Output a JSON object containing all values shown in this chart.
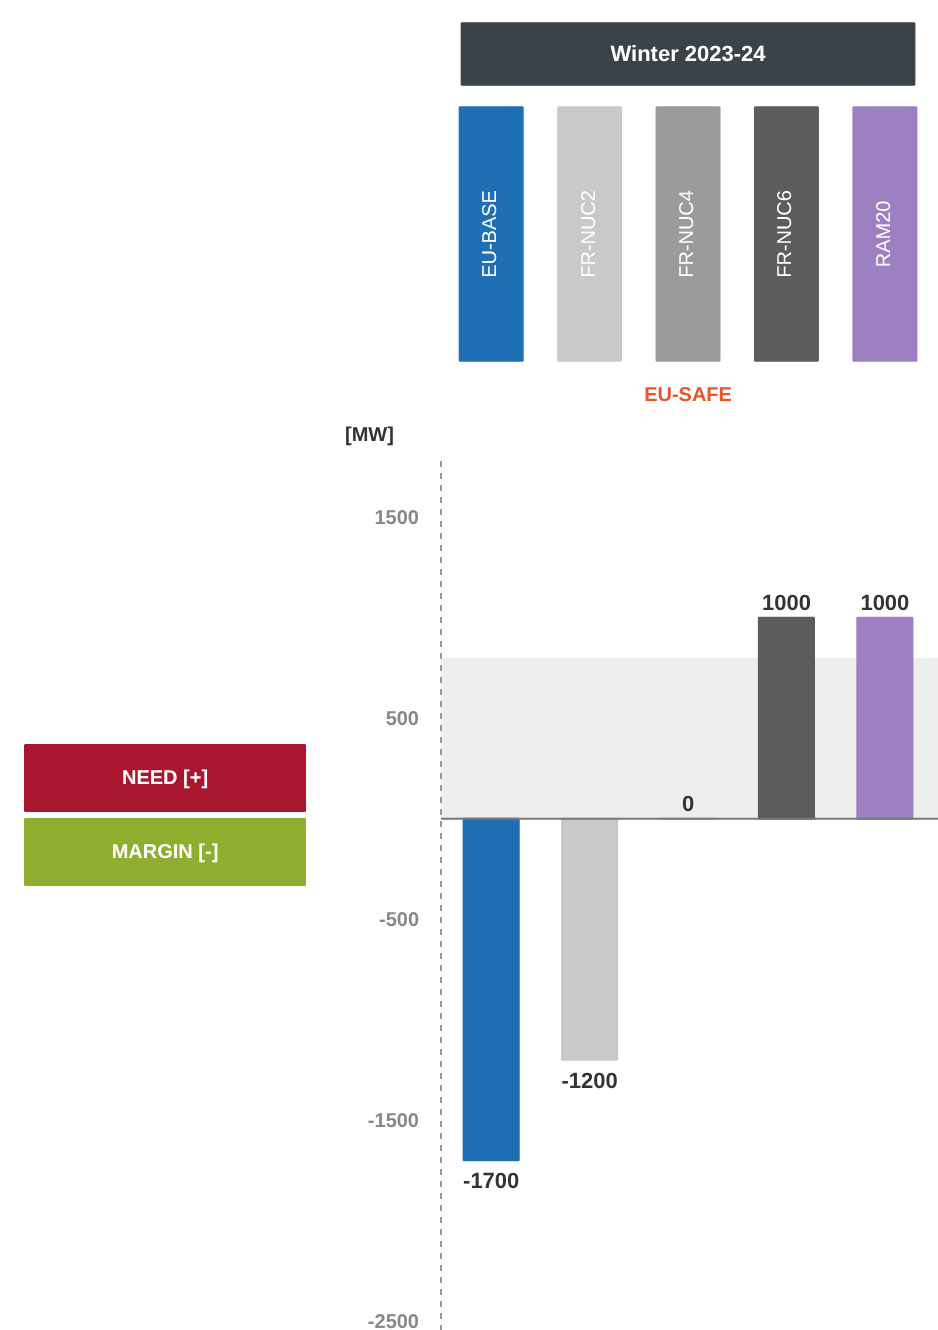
{
  "chart_data": {
    "type": "bar",
    "title": "Winter 2023-24",
    "ylabel": "[MW]",
    "categories": [
      "EU-BASE",
      "FR-NUC2",
      "FR-NUC4",
      "FR-NUC6",
      "RAM20"
    ],
    "values": [
      -1700,
      -1200,
      0,
      1000,
      1000
    ],
    "colors": [
      "#1f6fb5",
      "#c9c9c9",
      "#9b9b9b",
      "#5c5c5c",
      "#9c80c2"
    ],
    "ylim": [
      -2550,
      1800
    ],
    "yticks": [
      1500,
      500,
      -500,
      -1500,
      -2500
    ],
    "data_labels": true,
    "bands": [
      {
        "axis": "y",
        "from": 0,
        "to": 800,
        "color": "#ededed"
      }
    ],
    "annotations": [
      "NEED [+]",
      "MARGIN [-]",
      "EU-SAFE"
    ]
  }
}
